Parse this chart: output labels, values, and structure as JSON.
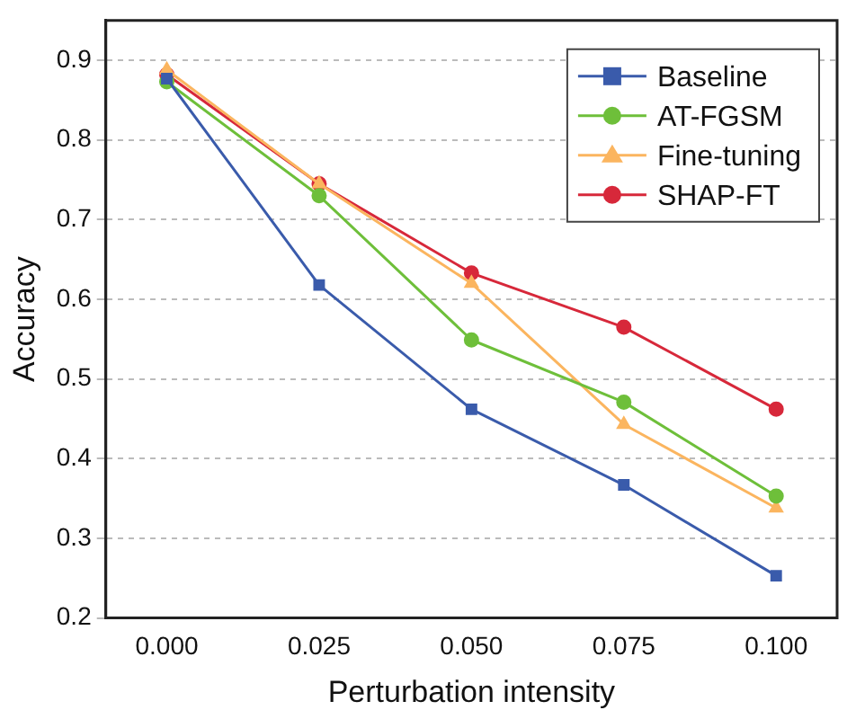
{
  "chart_data": {
    "type": "line",
    "xlabel": "Perturbation intensity",
    "ylabel": "Accuracy",
    "x": [
      0,
      0.025,
      0.05,
      0.075,
      0.1
    ],
    "series": [
      {
        "name": "Baseline",
        "color": "#3a5bab",
        "marker": "square",
        "values": [
          0.877,
          0.618,
          0.462,
          0.367,
          0.253
        ]
      },
      {
        "name": "AT-FGSM",
        "color": "#6ebf3a",
        "marker": "circle",
        "values": [
          0.873,
          0.73,
          0.549,
          0.471,
          0.353
        ]
      },
      {
        "name": "Fine-tuning",
        "color": "#fbb55f",
        "marker": "triangle",
        "values": [
          0.888,
          0.745,
          0.62,
          0.443,
          0.338
        ]
      },
      {
        "name": "SHAP-FT",
        "color": "#d7283a",
        "marker": "circle",
        "values": [
          0.882,
          0.745,
          0.633,
          0.565,
          0.462
        ]
      }
    ],
    "xlim": [
      -0.01,
      0.11
    ],
    "xticks": [
      {
        "value": 0,
        "label": "0.000"
      },
      {
        "value": 0.025,
        "label": "0.025"
      },
      {
        "value": 0.05,
        "label": "0.050"
      },
      {
        "value": 0.075,
        "label": "0.075"
      },
      {
        "value": 0.1,
        "label": "0.100"
      }
    ],
    "ylim": [
      0.2,
      0.95
    ],
    "yticks": [
      0.2,
      0.3,
      0.4,
      0.5,
      0.6,
      0.7,
      0.8,
      0.9
    ],
    "grid": "y",
    "legend": "top right",
    "line_style": "solid"
  }
}
